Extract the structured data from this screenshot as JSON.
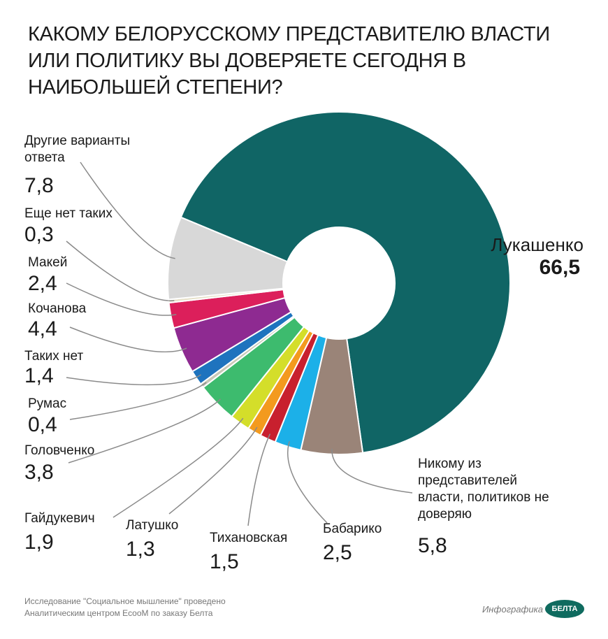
{
  "chart_data": {
    "type": "donut",
    "title": "КАКОМУ БЕЛОРУССКОМУ ПРЕДСТАВИТЕЛЮ ВЛАСТИ ИЛИ ПОЛИТИКУ ВЫ ДОВЕРЯЕТЕ СЕГОДНЯ В НАИБОЛЬШЕЙ СТЕПЕНИ?",
    "categories": [
      "Лукашенко",
      "Никому из представителей власти, политиков не доверяю",
      "Бабарико",
      "Тихановская",
      "Латушко",
      "Гайдукевич",
      "Головченко",
      "Румас",
      "Таких нет",
      "Кочанова",
      "Макей",
      "Еще нет таких",
      "Другие варианты ответа"
    ],
    "values": [
      66.5,
      5.8,
      2.5,
      1.5,
      1.3,
      1.9,
      3.8,
      0.4,
      1.4,
      4.4,
      2.4,
      0.3,
      7.8
    ],
    "value_labels": [
      "66,5",
      "5,8",
      "2,5",
      "1,5",
      "1,3",
      "1,9",
      "3,8",
      "0,4",
      "1,4",
      "4,4",
      "2,4",
      "0,3",
      "7,8"
    ],
    "colors": [
      "#106565",
      "#9a8478",
      "#1cb0e8",
      "#c8202e",
      "#f39a1e",
      "#d4de2a",
      "#3dbb6e",
      "#c8c8b8",
      "#1e73be",
      "#8e2a91",
      "#dc1f5b",
      "#e6e0c8",
      "#d8d8d8"
    ]
  },
  "footer": {
    "source": "Исследование \"Социальное мышление\" проведено Аналитическим центром EcooM по заказу Белта",
    "credit": "Инфографика",
    "logo": "БЕЛТА"
  }
}
